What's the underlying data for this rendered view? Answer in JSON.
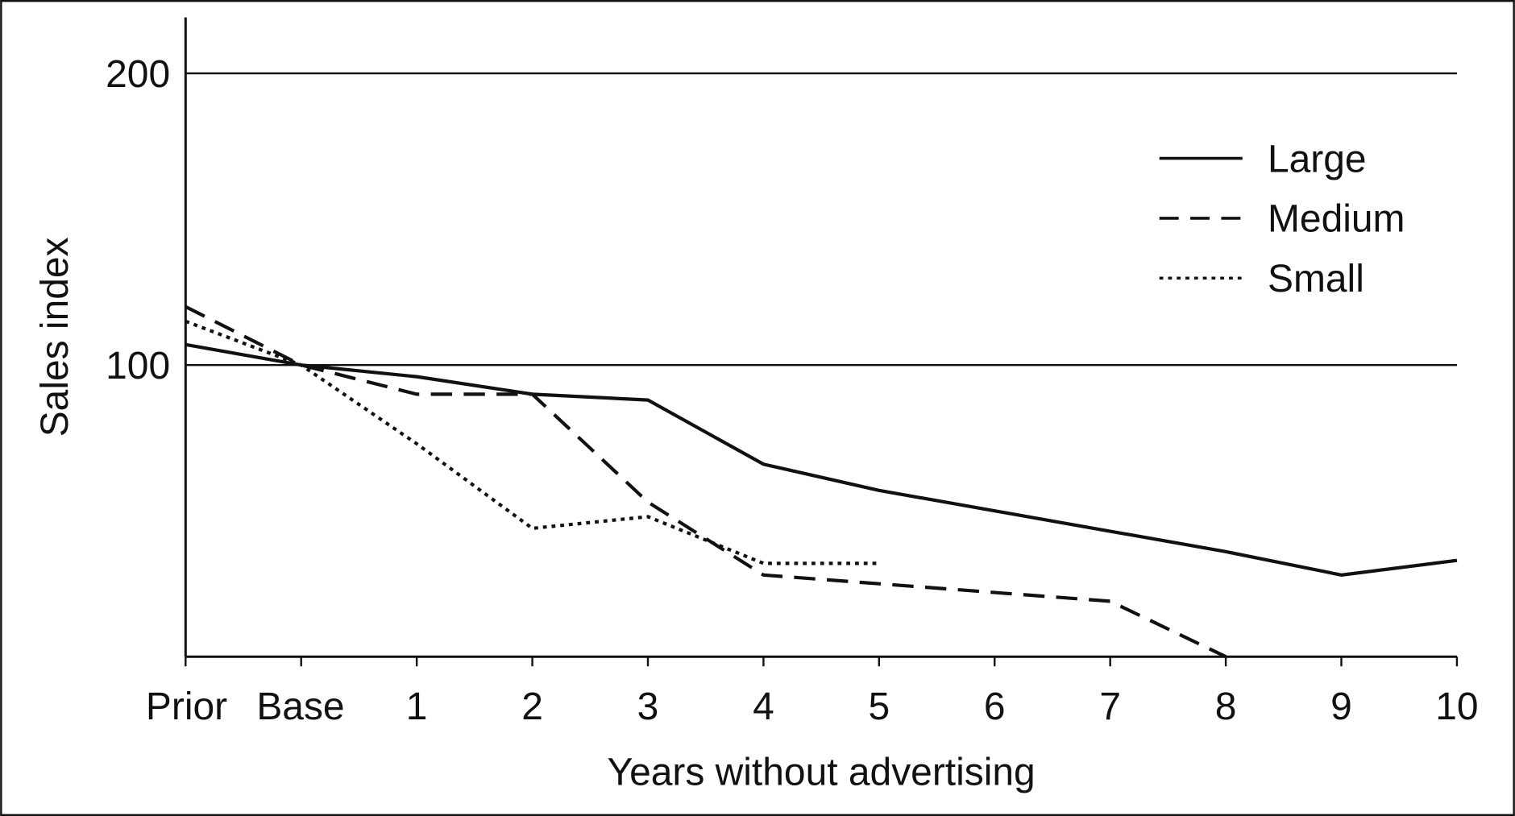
{
  "chart_data": {
    "type": "line",
    "title": "",
    "xlabel": "Years without advertising",
    "ylabel": "Sales index",
    "categories": [
      "Prior",
      "Base",
      "1",
      "2",
      "3",
      "4",
      "5",
      "6",
      "7",
      "8",
      "9",
      "10"
    ],
    "yticks": [
      100,
      200
    ],
    "ylim": [
      0,
      219
    ],
    "grid": "horizontal at 100 and 200",
    "legend_position": "top-right",
    "series": [
      {
        "name": "Large",
        "style": "solid",
        "values": [
          107,
          100,
          96,
          90,
          88,
          66,
          57,
          50,
          43,
          36,
          28,
          33
        ]
      },
      {
        "name": "Medium",
        "style": "dashed",
        "values": [
          120,
          100,
          90,
          90,
          53,
          28,
          25,
          22,
          19,
          0,
          null,
          null
        ]
      },
      {
        "name": "Small",
        "style": "dotted",
        "values": [
          115,
          100,
          73,
          44,
          48,
          32,
          32,
          null,
          null,
          null,
          null,
          null
        ]
      }
    ],
    "color": "#111111"
  }
}
